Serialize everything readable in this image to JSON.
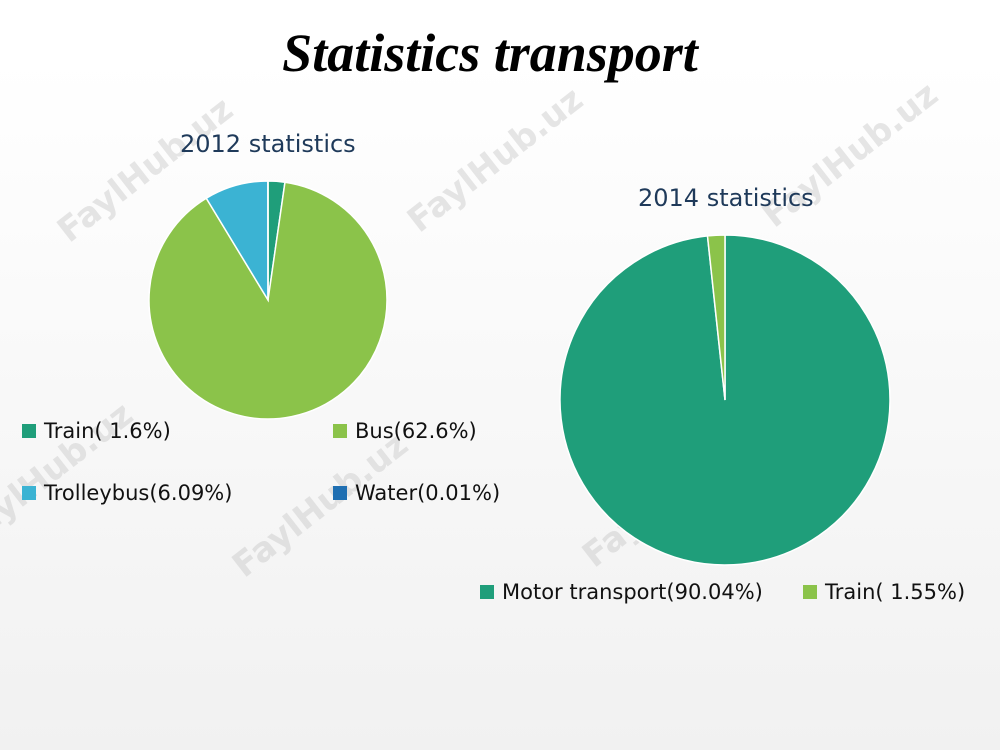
{
  "page": {
    "title": "Statistics transport",
    "watermark": "FaylHub.uz"
  },
  "colors": {
    "train_dark": "#1f9e7a",
    "bus_green": "#8bc34a",
    "trolleybus_blue": "#3bb3d3",
    "water_blue": "#1f6fb2"
  },
  "chart_data": [
    {
      "type": "pie",
      "title": "2012 statistics",
      "slices": [
        {
          "label": "Train( 1.6%)",
          "value": 1.6,
          "color": "#1f9e7a"
        },
        {
          "label": "Bus(62.6%)",
          "value": 62.6,
          "color": "#8bc34a"
        },
        {
          "label": "Trolleybus(6.09%)",
          "value": 6.09,
          "color": "#3bb3d3"
        },
        {
          "label": "Water(0.01%)",
          "value": 0.01,
          "color": "#1f6fb2"
        }
      ],
      "legend": "bottom"
    },
    {
      "type": "pie",
      "title": "2014 statistics",
      "slices": [
        {
          "label": "Motor transport(90.04%)",
          "value": 90.04,
          "color": "#1f9e7a"
        },
        {
          "label": "Train( 1.55%)",
          "value": 1.55,
          "color": "#8bc34a"
        }
      ],
      "legend": "bottom"
    }
  ]
}
